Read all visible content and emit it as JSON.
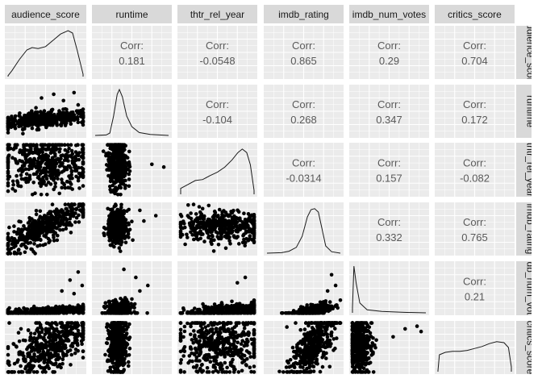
{
  "chart_data": {
    "type": "scatter",
    "title": "",
    "grid": true,
    "variables": [
      "audience_score",
      "runtime",
      "thtr_rel_year",
      "imdb_rating",
      "imdb_num_votes",
      "critics_score"
    ],
    "row_strip_labels": [
      "audience_score",
      "runtime",
      "thtr_rel_year",
      "imdb_rating",
      "imdb_num_votes",
      "critics_score"
    ],
    "corr_label": "Corr:",
    "correlations": [
      {
        "row": 0,
        "col": 1,
        "value": "0.181"
      },
      {
        "row": 0,
        "col": 2,
        "value": "-0.0548"
      },
      {
        "row": 0,
        "col": 3,
        "value": "0.865"
      },
      {
        "row": 0,
        "col": 4,
        "value": "0.29"
      },
      {
        "row": 0,
        "col": 5,
        "value": "0.704"
      },
      {
        "row": 1,
        "col": 2,
        "value": "-0.104"
      },
      {
        "row": 1,
        "col": 3,
        "value": "0.268"
      },
      {
        "row": 1,
        "col": 4,
        "value": "0.347"
      },
      {
        "row": 1,
        "col": 5,
        "value": "0.172"
      },
      {
        "row": 2,
        "col": 3,
        "value": "-0.0314"
      },
      {
        "row": 2,
        "col": 4,
        "value": "0.157"
      },
      {
        "row": 2,
        "col": 5,
        "value": "-0.082"
      },
      {
        "row": 3,
        "col": 4,
        "value": "0.332"
      },
      {
        "row": 3,
        "col": 5,
        "value": "0.765"
      },
      {
        "row": 4,
        "col": 5,
        "value": "0.21"
      }
    ],
    "density_shapes": [
      {
        "var": "audience_score",
        "points": [
          [
            0,
            0.02
          ],
          [
            0.05,
            0.12
          ],
          [
            0.15,
            0.35
          ],
          [
            0.25,
            0.55
          ],
          [
            0.32,
            0.6
          ],
          [
            0.4,
            0.58
          ],
          [
            0.5,
            0.62
          ],
          [
            0.6,
            0.75
          ],
          [
            0.7,
            0.88
          ],
          [
            0.8,
            0.95
          ],
          [
            0.86,
            0.9
          ],
          [
            0.92,
            0.55
          ],
          [
            1,
            0.05
          ]
        ]
      },
      {
        "var": "runtime",
        "points": [
          [
            0,
            0
          ],
          [
            0.15,
            0.01
          ],
          [
            0.2,
            0.05
          ],
          [
            0.25,
            0.4
          ],
          [
            0.3,
            0.85
          ],
          [
            0.33,
            0.95
          ],
          [
            0.37,
            0.8
          ],
          [
            0.43,
            0.4
          ],
          [
            0.5,
            0.18
          ],
          [
            0.6,
            0.06
          ],
          [
            0.75,
            0.02
          ],
          [
            1,
            0
          ]
        ]
      },
      {
        "var": "thtr_rel_year",
        "points": [
          [
            0,
            0.12
          ],
          [
            0.1,
            0.2
          ],
          [
            0.2,
            0.28
          ],
          [
            0.3,
            0.3
          ],
          [
            0.4,
            0.38
          ],
          [
            0.5,
            0.45
          ],
          [
            0.6,
            0.55
          ],
          [
            0.7,
            0.7
          ],
          [
            0.78,
            0.85
          ],
          [
            0.84,
            0.92
          ],
          [
            0.9,
            0.85
          ],
          [
            0.95,
            0.6
          ],
          [
            1,
            0.08
          ]
        ]
      },
      {
        "var": "imdb_rating",
        "points": [
          [
            0,
            0
          ],
          [
            0.2,
            0.01
          ],
          [
            0.3,
            0.04
          ],
          [
            0.4,
            0.12
          ],
          [
            0.48,
            0.35
          ],
          [
            0.55,
            0.75
          ],
          [
            0.6,
            0.9
          ],
          [
            0.65,
            0.92
          ],
          [
            0.7,
            0.85
          ],
          [
            0.75,
            0.5
          ],
          [
            0.8,
            0.15
          ],
          [
            0.88,
            0.03
          ],
          [
            1,
            0
          ]
        ]
      },
      {
        "var": "imdb_num_votes",
        "points": [
          [
            0,
            0.1
          ],
          [
            0.02,
            0.95
          ],
          [
            0.05,
            0.6
          ],
          [
            0.1,
            0.2
          ],
          [
            0.2,
            0.06
          ],
          [
            0.4,
            0.03
          ],
          [
            0.7,
            0.01
          ],
          [
            1,
            0
          ]
        ]
      },
      {
        "var": "critics_score",
        "points": [
          [
            0,
            0.02
          ],
          [
            0.02,
            0.35
          ],
          [
            0.1,
            0.4
          ],
          [
            0.2,
            0.42
          ],
          [
            0.3,
            0.42
          ],
          [
            0.4,
            0.44
          ],
          [
            0.5,
            0.48
          ],
          [
            0.6,
            0.52
          ],
          [
            0.7,
            0.58
          ],
          [
            0.8,
            0.62
          ],
          [
            0.9,
            0.6
          ],
          [
            0.96,
            0.5
          ],
          [
            1,
            0.1
          ]
        ]
      }
    ],
    "scatter_shapes": [
      {
        "row": 1,
        "col": 0,
        "cx": 0.5,
        "cy": 0.35,
        "sx": 0.27,
        "sy": 0.07,
        "slope": 0.12,
        "n": 450,
        "outliers": [
          [
            0.85,
            0.85
          ],
          [
            0.6,
            0.82
          ],
          [
            0.45,
            0.75
          ],
          [
            0.72,
            0.7
          ],
          [
            0.9,
            0.62
          ]
        ]
      },
      {
        "row": 2,
        "col": 0,
        "cx": 0.5,
        "cy": 0.62,
        "sx": 0.28,
        "sy": 0.25,
        "slope": 0,
        "n": 450
      },
      {
        "row": 3,
        "col": 0,
        "cx": 0.5,
        "cy": 0.55,
        "sx": 0.28,
        "sy": 0.14,
        "slope": 0.75,
        "n": 450
      },
      {
        "row": 4,
        "col": 0,
        "cx": 0.5,
        "cy": 0.07,
        "sx": 0.3,
        "sy": 0.04,
        "slope": 0.08,
        "n": 450,
        "outliers": [
          [
            0.9,
            0.8
          ],
          [
            0.8,
            0.65
          ],
          [
            0.95,
            0.55
          ],
          [
            0.7,
            0.45
          ],
          [
            0.85,
            0.4
          ]
        ]
      },
      {
        "row": 5,
        "col": 0,
        "cx": 0.55,
        "cy": 0.55,
        "sx": 0.25,
        "sy": 0.25,
        "slope": 0.7,
        "n": 450
      },
      {
        "row": 2,
        "col": 1,
        "cx": 0.32,
        "cy": 0.62,
        "sx": 0.06,
        "sy": 0.25,
        "slope": 0,
        "n": 420,
        "outliers": [
          [
            0.9,
            0.55
          ],
          [
            0.75,
            0.6
          ]
        ]
      },
      {
        "row": 3,
        "col": 1,
        "cx": 0.32,
        "cy": 0.55,
        "sx": 0.06,
        "sy": 0.15,
        "slope": 0,
        "n": 420,
        "outliers": [
          [
            0.8,
            0.75
          ],
          [
            0.6,
            0.85
          ],
          [
            0.65,
            0.65
          ]
        ]
      },
      {
        "row": 4,
        "col": 1,
        "cx": 0.35,
        "cy": 0.1,
        "sx": 0.08,
        "sy": 0.08,
        "slope": 0,
        "n": 300,
        "outliers": [
          [
            0.4,
            0.85
          ],
          [
            0.55,
            0.7
          ],
          [
            0.6,
            0.45
          ],
          [
            0.5,
            0.3
          ],
          [
            0.7,
            0.55
          ]
        ]
      },
      {
        "row": 5,
        "col": 1,
        "cx": 0.32,
        "cy": 0.55,
        "sx": 0.06,
        "sy": 0.28,
        "slope": 0,
        "n": 420
      },
      {
        "row": 3,
        "col": 2,
        "cx": 0.55,
        "cy": 0.55,
        "sx": 0.28,
        "sy": 0.14,
        "slope": 0,
        "n": 450
      },
      {
        "row": 4,
        "col": 2,
        "cx": 0.6,
        "cy": 0.08,
        "sx": 0.25,
        "sy": 0.06,
        "slope": 0.15,
        "n": 400,
        "outliers": [
          [
            0.85,
            0.7
          ],
          [
            0.75,
            0.6
          ]
        ]
      },
      {
        "row": 5,
        "col": 2,
        "cx": 0.55,
        "cy": 0.55,
        "sx": 0.28,
        "sy": 0.28,
        "slope": 0,
        "n": 450
      },
      {
        "row": 4,
        "col": 3,
        "cx": 0.6,
        "cy": 0.08,
        "sx": 0.12,
        "sy": 0.05,
        "slope": 0.35,
        "n": 400,
        "outliers": [
          [
            0.85,
            0.75
          ],
          [
            0.9,
            0.55
          ],
          [
            0.8,
            0.45
          ]
        ]
      },
      {
        "row": 5,
        "col": 3,
        "cx": 0.62,
        "cy": 0.55,
        "sx": 0.14,
        "sy": 0.25,
        "slope": 1.4,
        "n": 420
      },
      {
        "row": 5,
        "col": 4,
        "cx": 0.12,
        "cy": 0.55,
        "sx": 0.08,
        "sy": 0.26,
        "slope": 0,
        "n": 380,
        "outliers": [
          [
            0.7,
            0.85
          ],
          [
            0.85,
            0.9
          ],
          [
            0.9,
            0.8
          ],
          [
            0.55,
            0.7
          ]
        ]
      }
    ]
  }
}
